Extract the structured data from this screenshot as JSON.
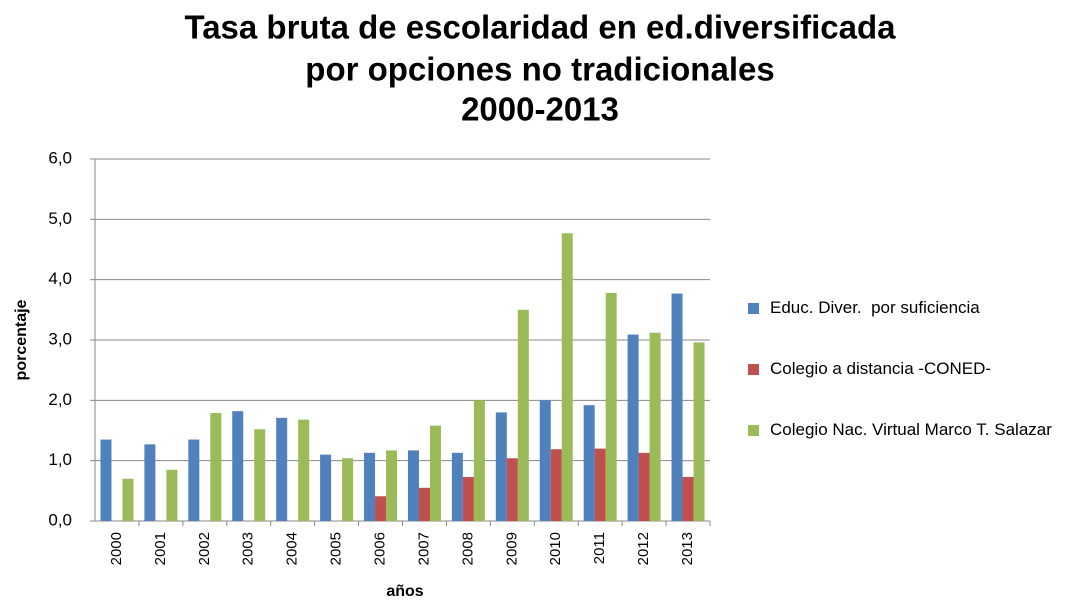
{
  "chart_data": {
    "type": "bar",
    "title": "Tasa bruta de escolaridad en ed.diversificada",
    "subtitle": [
      "por opciones no tradicionales",
      "2000-2013"
    ],
    "x_label": "años",
    "y_label": "porcentaje",
    "categories": [
      "2000",
      "2001",
      "2002",
      "2003",
      "2004",
      "2005",
      "2006",
      "2007",
      "2008",
      "2009",
      "2010",
      "2011",
      "2012",
      "2013"
    ],
    "series": [
      {
        "name": "Educ. Diver.  por suficiencia",
        "color": "#4f81bd",
        "values": [
          1.35,
          1.27,
          1.35,
          1.82,
          1.71,
          1.1,
          1.13,
          1.17,
          1.13,
          1.8,
          2.0,
          1.92,
          3.09,
          3.77
        ]
      },
      {
        "name": "Colegio a distancia -CONED-",
        "color": "#c0504d",
        "values": [
          null,
          null,
          null,
          null,
          null,
          null,
          0.41,
          0.55,
          0.73,
          1.04,
          1.19,
          1.2,
          1.13,
          0.73
        ]
      },
      {
        "name": "Colegio Nac. Virtual Marco T. Salazar",
        "color": "#9bbb59",
        "values": [
          0.7,
          0.85,
          1.79,
          1.52,
          1.68,
          1.04,
          1.17,
          1.58,
          2.0,
          3.5,
          4.77,
          3.78,
          3.12,
          2.96
        ]
      }
    ],
    "ylim": [
      0,
      6
    ],
    "yticks": [
      {
        "value": 0,
        "label": "0,0"
      },
      {
        "value": 1,
        "label": "1,0"
      },
      {
        "value": 2,
        "label": "2,0"
      },
      {
        "value": 3,
        "label": "3,0"
      },
      {
        "value": 4,
        "label": "4,0"
      },
      {
        "value": 5,
        "label": "5,0"
      },
      {
        "value": 6,
        "label": "6,0"
      }
    ],
    "grid": true,
    "legend": "right"
  }
}
